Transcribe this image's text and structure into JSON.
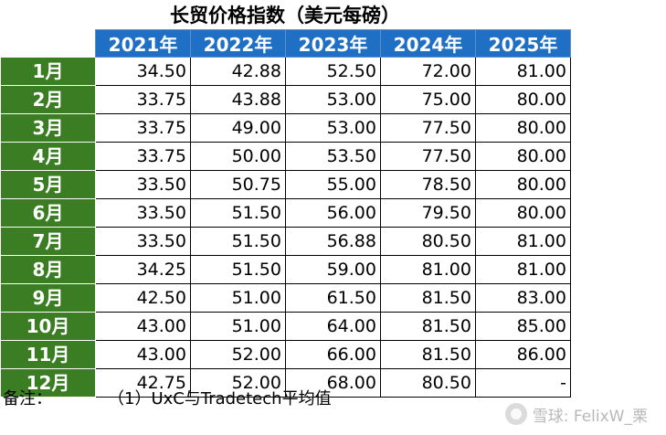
{
  "title": "长贸价格指数（美元每磅）",
  "years": [
    "2021年",
    "2022年",
    "2023年",
    "2024年",
    "2025年"
  ],
  "rows": [
    {
      "month": "1月",
      "values": [
        "34.50",
        "42.88",
        "52.50",
        "72.00",
        "81.00"
      ]
    },
    {
      "month": "2月",
      "values": [
        "33.75",
        "43.88",
        "53.00",
        "75.00",
        "80.00"
      ]
    },
    {
      "month": "3月",
      "values": [
        "33.75",
        "49.00",
        "53.00",
        "77.50",
        "80.00"
      ]
    },
    {
      "month": "4月",
      "values": [
        "33.75",
        "50.00",
        "53.50",
        "77.50",
        "80.00"
      ]
    },
    {
      "month": "5月",
      "values": [
        "33.50",
        "50.75",
        "55.00",
        "78.50",
        "80.00"
      ]
    },
    {
      "month": "6月",
      "values": [
        "33.50",
        "51.50",
        "56.00",
        "79.50",
        "80.00"
      ]
    },
    {
      "month": "7月",
      "values": [
        "33.50",
        "51.50",
        "56.88",
        "80.50",
        "81.00"
      ]
    },
    {
      "month": "8月",
      "values": [
        "34.25",
        "51.50",
        "59.00",
        "81.00",
        "81.00"
      ]
    },
    {
      "month": "9月",
      "values": [
        "42.50",
        "51.00",
        "61.50",
        "81.50",
        "83.00"
      ]
    },
    {
      "month": "10月",
      "values": [
        "43.00",
        "51.00",
        "64.00",
        "81.50",
        "85.00"
      ]
    },
    {
      "month": "11月",
      "values": [
        "43.00",
        "52.00",
        "66.00",
        "81.50",
        "86.00"
      ]
    },
    {
      "month": "12月",
      "values": [
        "42.75",
        "52.00",
        "68.00",
        "80.50",
        "-"
      ]
    }
  ],
  "footnote": {
    "label": "备注：",
    "text": "（1）UxC与Tradetech平均值"
  },
  "watermark": {
    "text": "雪球: FelixW_栗",
    "icon": "xueqiu-logo-icon"
  },
  "colors": {
    "header_blue": "#1f6fc5",
    "month_green": "#3a7d22"
  }
}
